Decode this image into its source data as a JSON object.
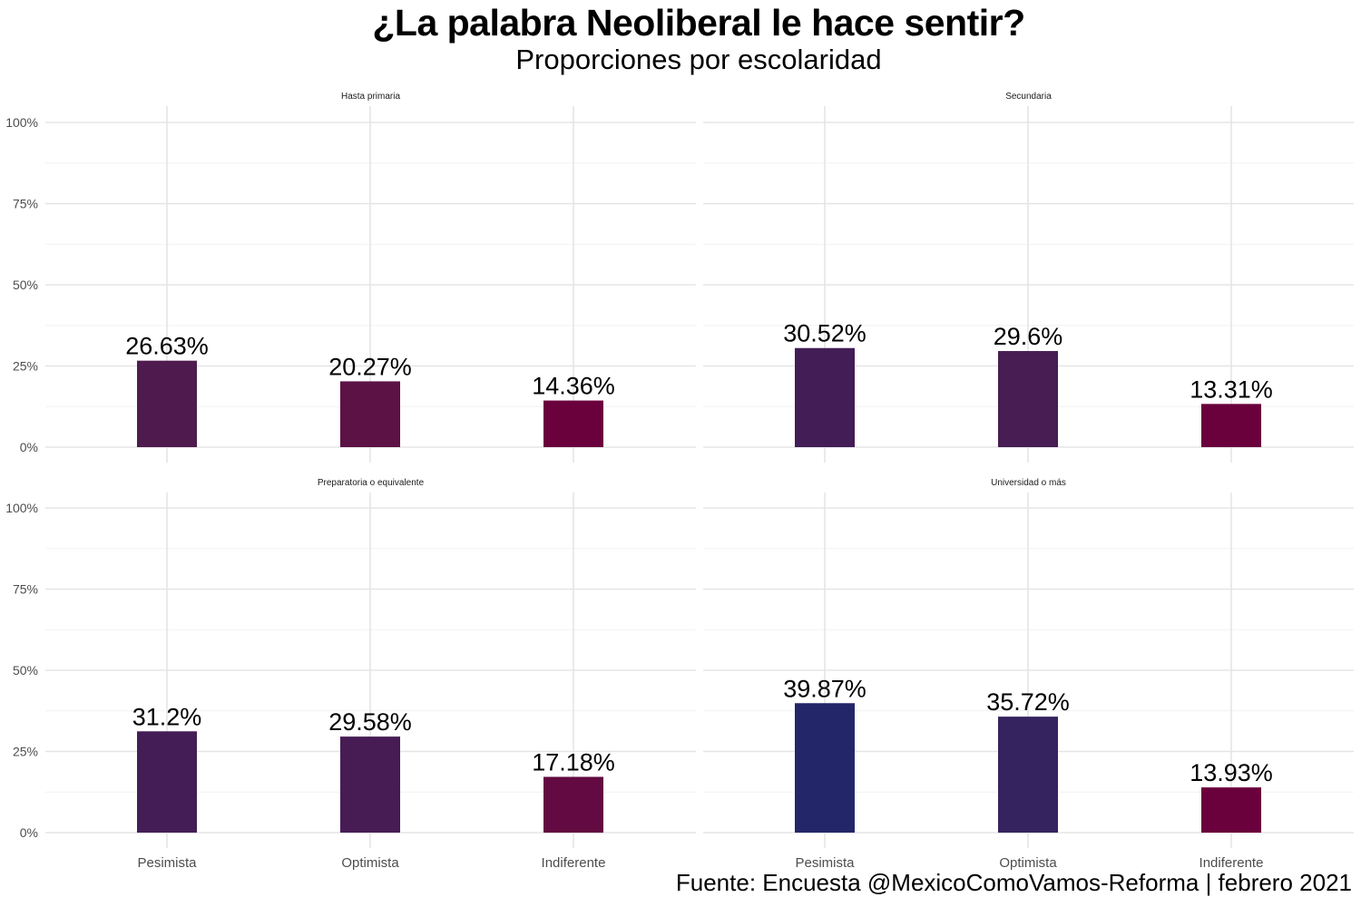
{
  "title": "¿La palabra Neoliberal le hace sentir?",
  "subtitle": "Proporciones por escolaridad",
  "caption": "Fuente: Encuesta @MexicoComoVamos-Reforma | febrero 2021",
  "chart_data": {
    "type": "bar",
    "ylim": [
      0,
      1
    ],
    "y_ticks": [
      "0%",
      "25%",
      "50%",
      "75%",
      "100%"
    ],
    "categories": [
      "Pesimista",
      "Optimista",
      "Indiferente"
    ],
    "grid": true,
    "legend": "none",
    "panels": [
      {
        "name": "Hasta primaria",
        "values": [
          26.63,
          20.27,
          14.36
        ],
        "labels": [
          "26.63%",
          "20.27%",
          "14.36%"
        ],
        "colors": [
          "#4f1b4f",
          "#5c1245",
          "#6a003c"
        ]
      },
      {
        "name": "Secundaria",
        "values": [
          30.52,
          29.6,
          13.31
        ],
        "labels": [
          "30.52%",
          "29.6%",
          "13.31%"
        ],
        "colors": [
          "#431d56",
          "#471d54",
          "#6a003c"
        ]
      },
      {
        "name": "Preparatoria o equivalente",
        "values": [
          31.2,
          29.58,
          17.18
        ],
        "labels": [
          "31.2%",
          "29.58%",
          "17.18%"
        ],
        "colors": [
          "#441d56",
          "#471c55",
          "#620a41"
        ]
      },
      {
        "name": "Universidad o más",
        "values": [
          39.87,
          35.72,
          13.93
        ],
        "labels": [
          "39.87%",
          "35.72%",
          "13.93%"
        ],
        "colors": [
          "#232769",
          "#35235f",
          "#6a003c"
        ]
      }
    ]
  }
}
